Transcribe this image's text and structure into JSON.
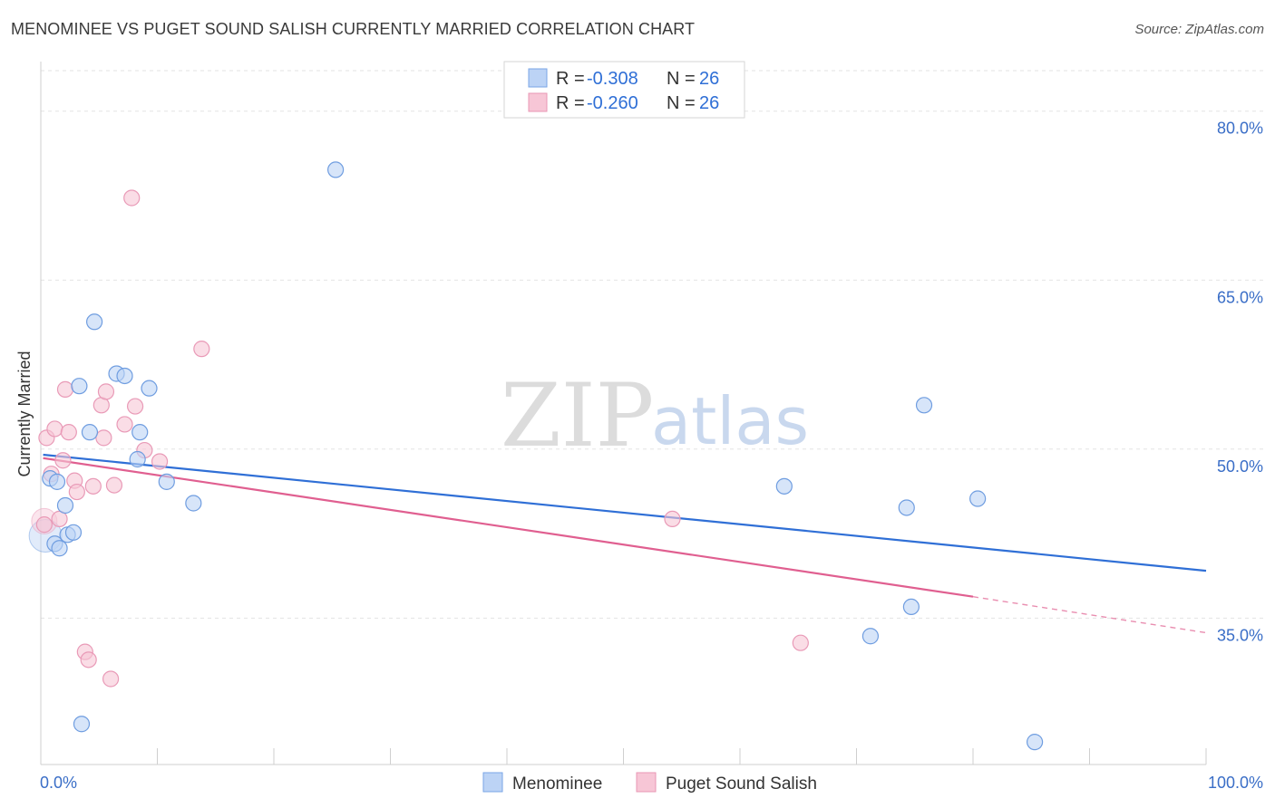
{
  "title": "MENOMINEE VS PUGET SOUND SALISH CURRENTLY MARRIED CORRELATION CHART",
  "source": "Source: ZipAtlas.com",
  "watermark": {
    "zip": "ZIP",
    "atlas": "atlas"
  },
  "colors": {
    "blue": "#2f6fd6",
    "blue_fill": "#bcd3f5",
    "pink": "#e05f90",
    "pink_fill": "#f7c6d6",
    "tick": "#3a6ec7"
  },
  "legend": {
    "rows": [
      {
        "r_label": "R = ",
        "r_value": "-0.308",
        "n_label": "N = ",
        "n_value": "26"
      },
      {
        "r_label": "R = ",
        "r_value": "-0.260",
        "n_label": "N = ",
        "n_value": "26"
      }
    ]
  },
  "chart_data": {
    "type": "scatter",
    "ylabel": "Currently Married",
    "x_tick_labels": [
      "0.0%",
      "100.0%"
    ],
    "y_tick_labels": [
      "80.0%",
      "65.0%",
      "50.0%",
      "35.0%"
    ],
    "y_ticks": [
      80,
      65,
      50,
      35
    ],
    "xlim": [
      0,
      100
    ],
    "ylim": [
      22,
      84
    ],
    "grid": true,
    "series": [
      {
        "name": "Menominee",
        "color": "#2f6fd6",
        "points": [
          [
            1.2,
            41.6
          ],
          [
            0.8,
            47.4
          ],
          [
            1.6,
            41.2
          ],
          [
            1.4,
            47.1
          ],
          [
            2.1,
            45.0
          ],
          [
            2.3,
            42.4
          ],
          [
            2.8,
            42.6
          ],
          [
            3.3,
            55.6
          ],
          [
            3.5,
            25.6
          ],
          [
            4.2,
            51.5
          ],
          [
            4.6,
            61.3
          ],
          [
            6.5,
            56.7
          ],
          [
            7.2,
            56.5
          ],
          [
            8.3,
            49.1
          ],
          [
            8.5,
            51.5
          ],
          [
            9.3,
            55.4
          ],
          [
            10.8,
            47.1
          ],
          [
            13.1,
            45.2
          ],
          [
            25.3,
            74.8
          ],
          [
            63.8,
            46.7
          ],
          [
            71.2,
            33.4
          ],
          [
            74.3,
            44.8
          ],
          [
            74.7,
            36.0
          ],
          [
            75.8,
            53.9
          ],
          [
            80.4,
            45.6
          ],
          [
            85.3,
            24.0
          ]
        ],
        "trend": {
          "x0": 0.2,
          "y0": 49.5,
          "x1": 100,
          "y1": 39.2
        }
      },
      {
        "name": "Puget Sound Salish",
        "color": "#e05f90",
        "points": [
          [
            0.3,
            43.3
          ],
          [
            0.5,
            51.0
          ],
          [
            0.9,
            47.8
          ],
          [
            1.2,
            51.8
          ],
          [
            1.6,
            43.8
          ],
          [
            1.9,
            49.0
          ],
          [
            2.1,
            55.3
          ],
          [
            2.4,
            51.5
          ],
          [
            2.9,
            47.2
          ],
          [
            3.1,
            46.2
          ],
          [
            3.8,
            32.0
          ],
          [
            4.1,
            31.3
          ],
          [
            4.5,
            46.7
          ],
          [
            5.2,
            53.9
          ],
          [
            5.4,
            51.0
          ],
          [
            5.6,
            55.1
          ],
          [
            6.0,
            29.6
          ],
          [
            6.3,
            46.8
          ],
          [
            7.2,
            52.2
          ],
          [
            7.8,
            72.3
          ],
          [
            8.1,
            53.8
          ],
          [
            8.9,
            49.9
          ],
          [
            10.2,
            48.9
          ],
          [
            13.8,
            58.9
          ],
          [
            54.2,
            43.8
          ],
          [
            65.2,
            32.8
          ]
        ],
        "trend": {
          "x0": 0.2,
          "y0": 49.2,
          "x1": 80.0,
          "y1": 36.9,
          "dash_to_x": 100,
          "dash_to_y": 33.7
        }
      }
    ]
  }
}
